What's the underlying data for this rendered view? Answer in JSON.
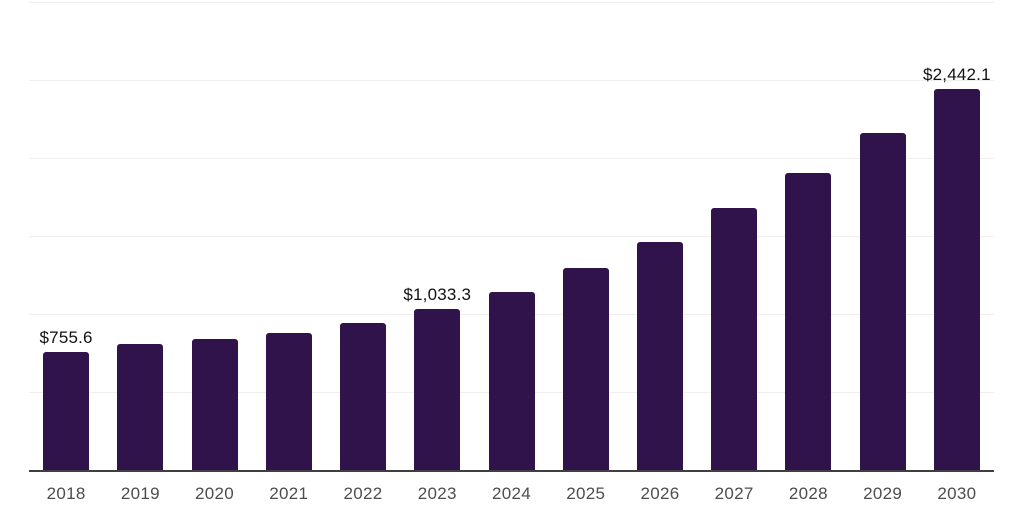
{
  "chart_data": {
    "type": "bar",
    "title": "",
    "xlabel": "",
    "ylabel": "",
    "categories": [
      "2018",
      "2019",
      "2020",
      "2021",
      "2022",
      "2023",
      "2024",
      "2025",
      "2026",
      "2027",
      "2028",
      "2029",
      "2030"
    ],
    "values": [
      755.6,
      805.0,
      838.0,
      878.0,
      941.0,
      1033.3,
      1140.0,
      1293.0,
      1464.0,
      1679.0,
      1907.0,
      2163.0,
      2442.1
    ],
    "value_labels": [
      "$755.6",
      "",
      "",
      "",
      "",
      "$1,033.3",
      "",
      "",
      "",
      "",
      "",
      "",
      "$2,442.1"
    ],
    "ylim": [
      0,
      3000
    ],
    "grid": {
      "visible": true,
      "interval": 500,
      "levels": [
        500,
        1000,
        1500,
        2000,
        2500,
        3000
      ]
    },
    "legend": "none"
  },
  "colors": {
    "background": "#ffffff",
    "bar": "#31134B",
    "gridline": "#efefef",
    "axis_line": "#3f3f3f",
    "tick_label": "#4d4d4d",
    "value_label": "#111111"
  }
}
